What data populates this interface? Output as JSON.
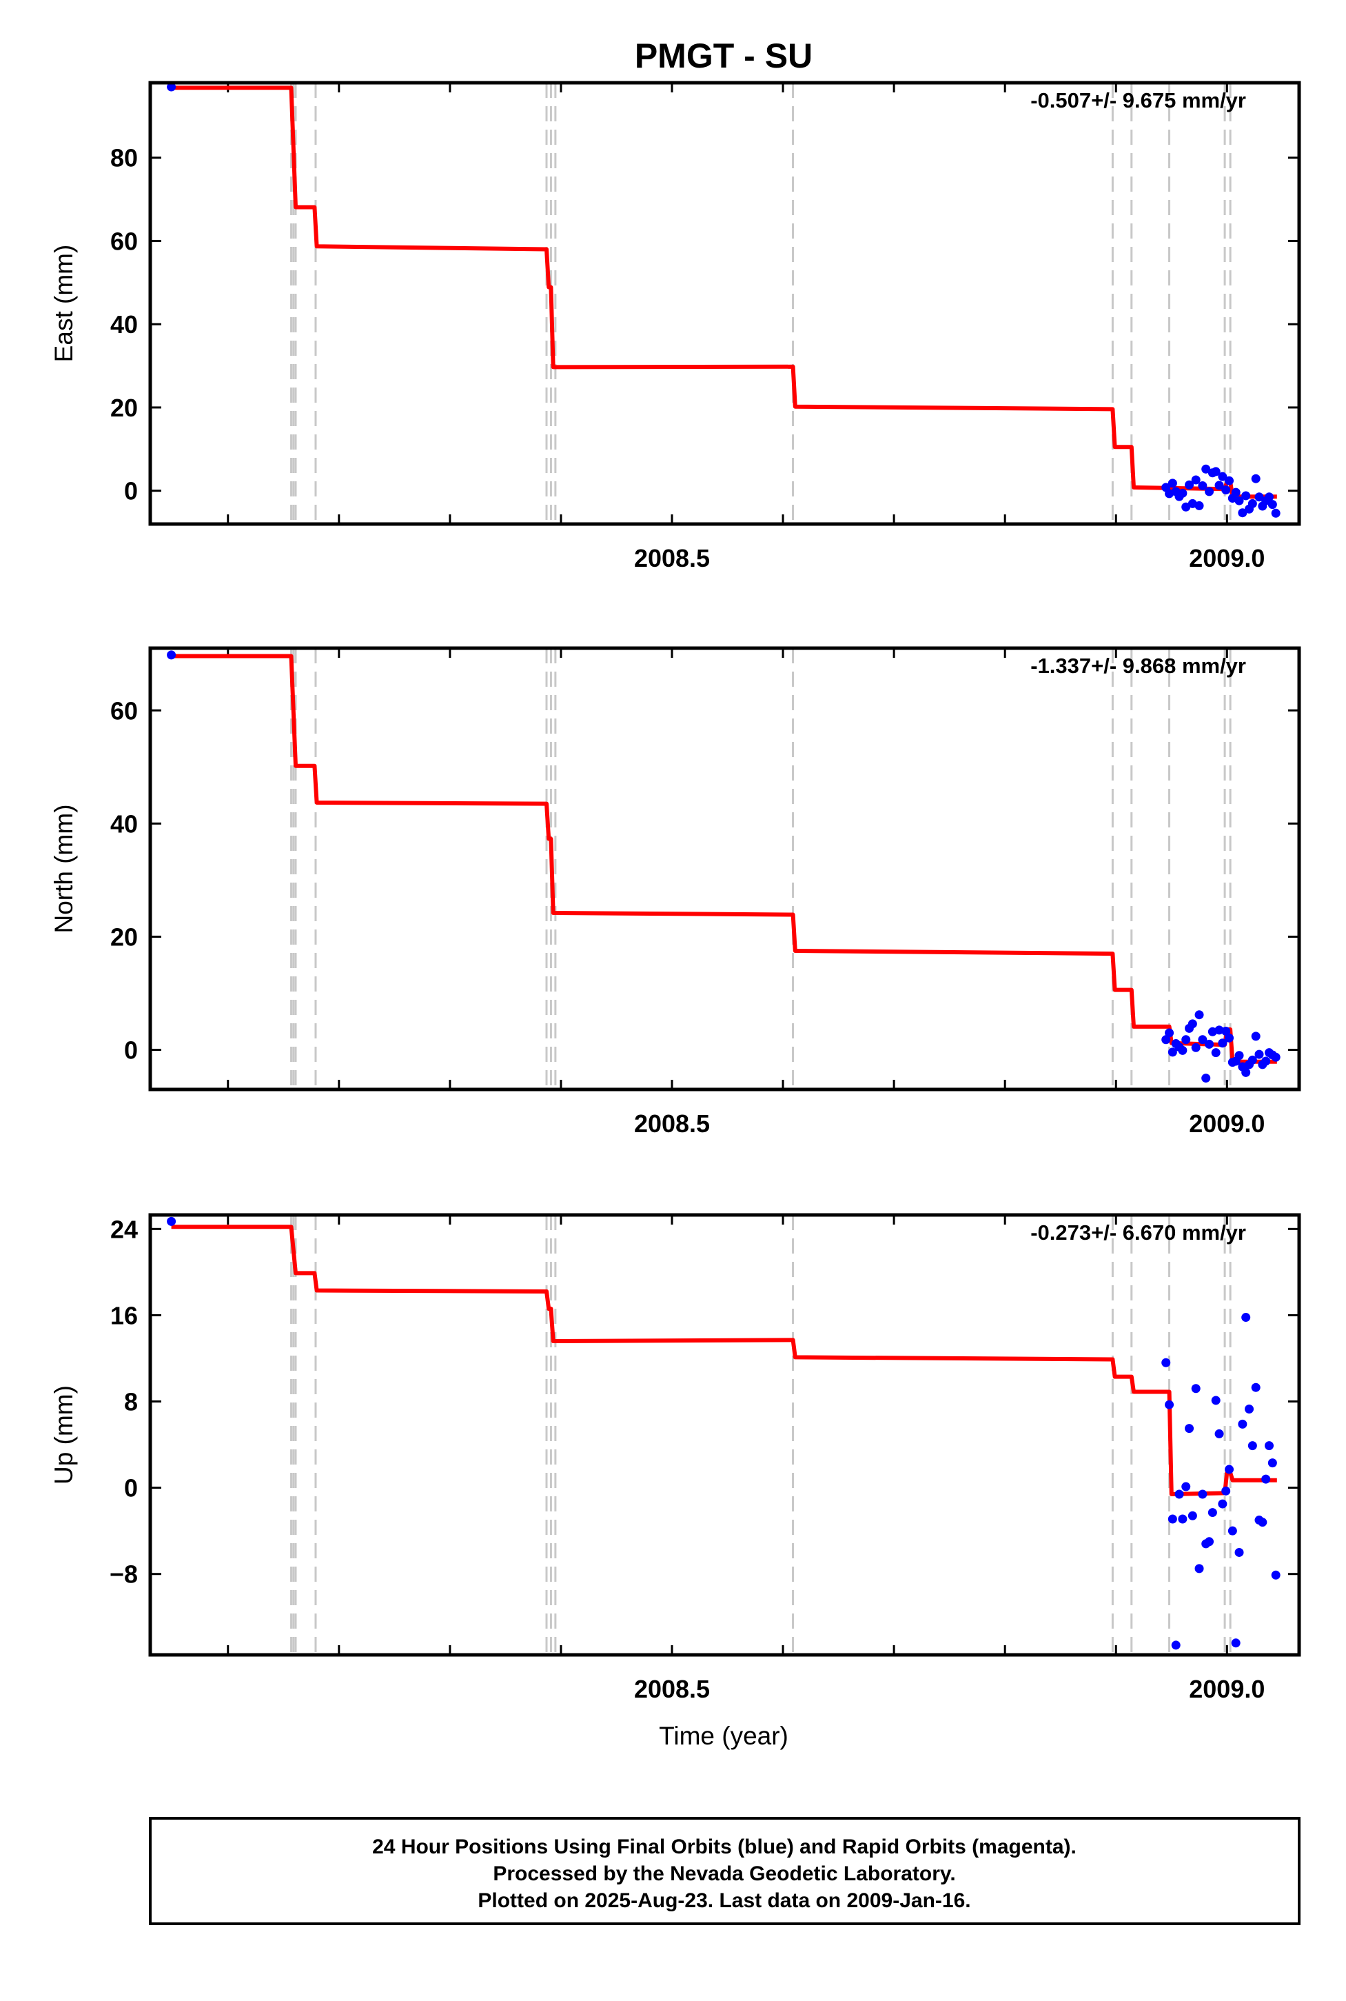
{
  "title": "PMGT - SU",
  "x_axis_label": "Time (year)",
  "footer_lines": [
    "24 Hour Positions Using Final Orbits (blue) and Rapid Orbits (magenta).",
    "Processed by the Nevada Geodetic Laboratory.",
    "Plotted on 2025-Aug-23. Last data on 2009-Jan-16."
  ],
  "colors": {
    "final_orbits": "#0000ff",
    "model": "#ff0000",
    "event_lines": "#c8c8c8",
    "frame": "#000000"
  },
  "chart_data": [
    {
      "type": "scatter",
      "component": "East",
      "ylabel": "East (mm)",
      "rate_text": "-0.507+/- 9.675 mm/yr",
      "xlim": [
        2008.03,
        2009.065
      ],
      "ylim": [
        -8,
        98
      ],
      "x_ticks": [
        2008.5,
        2009.0
      ],
      "x_tick_labels": [
        "2008.5",
        "2009.0"
      ],
      "y_ticks": [
        0,
        20,
        40,
        60,
        80
      ],
      "y_tick_labels": [
        "0",
        "20",
        "40",
        "60",
        "80"
      ],
      "event_lines": [
        2008.157,
        2008.159,
        2008.161,
        2008.179,
        2008.387,
        2008.391,
        2008.395,
        2008.609,
        2008.897,
        2008.914,
        2008.948,
        2008.998,
        2009.003
      ],
      "points": {
        "x": [
          2008.049,
          2008.945,
          2008.948,
          2008.951,
          2008.954,
          2008.957,
          2008.96,
          2008.963,
          2008.966,
          2008.969,
          2008.972,
          2008.975,
          2008.978,
          2008.981,
          2008.984,
          2008.987,
          2008.99,
          2008.993,
          2008.996,
          2008.999,
          2009.002,
          2009.005,
          2009.008,
          2009.011,
          2009.014,
          2009.017,
          2009.02,
          2009.023,
          2009.026,
          2009.029,
          2009.032,
          2009.035,
          2009.038,
          2009.041,
          2009.044
        ],
        "y": [
          97,
          0.8,
          -0.7,
          1.8,
          -0.2,
          -1.4,
          -0.6,
          -3.9,
          1.4,
          -3.1,
          2.6,
          -3.6,
          1.2,
          5.2,
          -0.2,
          4.3,
          4.6,
          1.3,
          3.4,
          0.2,
          2.4,
          -1.8,
          -0.4,
          -2.4,
          -5.3,
          -1.2,
          -4.4,
          -3.1,
          2.9,
          -1.5,
          -3.7,
          -2.4,
          -1.5,
          -3.3,
          -5.4
        ]
      },
      "model": {
        "x": [
          2008.049,
          2008.157,
          2008.161,
          2008.162,
          2008.178,
          2008.18,
          2008.387,
          2008.389,
          2008.391,
          2008.393,
          2008.395,
          2008.609,
          2008.611,
          2008.897,
          2008.899,
          2008.914,
          2008.916,
          2008.998,
          2009.0,
          2009.003,
          2009.005,
          2009.045
        ],
        "y": [
          96.8,
          96.8,
          68.1,
          68.1,
          68.1,
          58.7,
          58.0,
          48.9,
          48.9,
          29.7,
          29.7,
          29.8,
          20.2,
          19.6,
          10.5,
          10.5,
          0.8,
          0.4,
          2.1,
          2.1,
          -1.4,
          -1.4
        ]
      }
    },
    {
      "type": "scatter",
      "component": "North",
      "ylabel": "North (mm)",
      "rate_text": "-1.337+/- 9.868 mm/yr",
      "xlim": [
        2008.03,
        2009.065
      ],
      "ylim": [
        -7,
        71
      ],
      "x_ticks": [
        2008.5,
        2009.0
      ],
      "x_tick_labels": [
        "2008.5",
        "2009.0"
      ],
      "y_ticks": [
        0,
        20,
        40,
        60
      ],
      "y_tick_labels": [
        "0",
        "20",
        "40",
        "60"
      ],
      "event_lines": [
        2008.157,
        2008.159,
        2008.161,
        2008.179,
        2008.387,
        2008.391,
        2008.395,
        2008.609,
        2008.897,
        2008.914,
        2008.948,
        2008.998,
        2009.003
      ],
      "points": {
        "x": [
          2008.049,
          2008.945,
          2008.948,
          2008.951,
          2008.954,
          2008.957,
          2008.96,
          2008.963,
          2008.966,
          2008.969,
          2008.972,
          2008.975,
          2008.978,
          2008.981,
          2008.984,
          2008.987,
          2008.99,
          2008.993,
          2008.996,
          2008.999,
          2009.002,
          2009.005,
          2009.008,
          2009.011,
          2009.014,
          2009.017,
          2009.02,
          2009.023,
          2009.026,
          2009.029,
          2009.032,
          2009.035,
          2009.038,
          2009.041,
          2009.044
        ],
        "y": [
          69.8,
          1.8,
          3.0,
          -0.4,
          1.1,
          0.5,
          -0.1,
          1.8,
          3.8,
          4.6,
          0.4,
          6.2,
          1.8,
          -5.0,
          1.0,
          3.2,
          -0.5,
          3.5,
          1.2,
          3.3,
          2.1,
          -2.2,
          -2.0,
          -1.0,
          -3.0,
          -4.0,
          -2.6,
          -1.8,
          2.4,
          -0.8,
          -2.6,
          -2.0,
          -0.5,
          -0.9,
          -1.3
        ]
      },
      "model": {
        "x": [
          2008.049,
          2008.157,
          2008.161,
          2008.162,
          2008.178,
          2008.18,
          2008.387,
          2008.389,
          2008.391,
          2008.393,
          2008.395,
          2008.609,
          2008.611,
          2008.897,
          2008.899,
          2008.914,
          2008.916,
          2008.948,
          2008.95,
          2008.998,
          2009.0,
          2009.003,
          2009.005,
          2009.045
        ],
        "y": [
          69.6,
          69.6,
          50.2,
          50.2,
          50.2,
          43.7,
          43.5,
          37.3,
          37.3,
          24.2,
          24.2,
          23.9,
          17.5,
          17.0,
          10.6,
          10.6,
          4.1,
          4.1,
          1.2,
          0.9,
          3.6,
          3.6,
          -2.1,
          -2.1
        ]
      }
    },
    {
      "type": "scatter",
      "component": "Up",
      "ylabel": "Up (mm)",
      "rate_text": "-0.273+/- 6.670 mm/yr",
      "xlim": [
        2008.03,
        2009.065
      ],
      "ylim": [
        -15.5,
        25.3
      ],
      "x_ticks": [
        2008.5,
        2009.0
      ],
      "x_tick_labels": [
        "2008.5",
        "2009.0"
      ],
      "y_ticks": [
        -8,
        0,
        8,
        16,
        24
      ],
      "y_tick_labels": [
        "−8",
        "0",
        "8",
        "16",
        "24"
      ],
      "event_lines": [
        2008.157,
        2008.159,
        2008.161,
        2008.179,
        2008.387,
        2008.391,
        2008.395,
        2008.609,
        2008.897,
        2008.914,
        2008.948,
        2008.998,
        2009.003
      ],
      "points": {
        "x": [
          2008.049,
          2008.945,
          2008.948,
          2008.951,
          2008.954,
          2008.957,
          2008.96,
          2008.963,
          2008.966,
          2008.969,
          2008.972,
          2008.975,
          2008.978,
          2008.981,
          2008.984,
          2008.987,
          2008.99,
          2008.993,
          2008.996,
          2008.999,
          2009.002,
          2009.005,
          2009.008,
          2009.011,
          2009.014,
          2009.017,
          2009.02,
          2009.023,
          2009.026,
          2009.029,
          2009.032,
          2009.035,
          2009.038,
          2009.041,
          2009.044
        ],
        "y": [
          24.7,
          11.6,
          7.7,
          -2.9,
          -14.6,
          -0.6,
          -2.9,
          0.1,
          5.5,
          -2.6,
          9.2,
          -7.5,
          -0.6,
          -5.2,
          -5.0,
          -2.3,
          8.1,
          5.0,
          -1.5,
          -0.3,
          1.7,
          -4.0,
          -14.4,
          -6.0,
          5.9,
          15.8,
          7.3,
          3.9,
          9.3,
          -3.0,
          -3.2,
          0.8,
          3.9,
          2.3,
          -8.1
        ]
      },
      "model": {
        "x": [
          2008.049,
          2008.157,
          2008.161,
          2008.162,
          2008.178,
          2008.18,
          2008.387,
          2008.389,
          2008.391,
          2008.393,
          2008.395,
          2008.609,
          2008.611,
          2008.897,
          2008.899,
          2008.914,
          2008.916,
          2008.948,
          2008.95,
          2008.998,
          2009.0,
          2009.003,
          2009.005,
          2009.045
        ],
        "y": [
          24.2,
          24.2,
          19.9,
          19.9,
          19.9,
          18.3,
          18.2,
          16.6,
          16.6,
          13.6,
          13.6,
          13.7,
          12.1,
          11.9,
          10.3,
          10.3,
          8.9,
          8.9,
          -0.6,
          -0.5,
          1.4,
          1.4,
          0.7,
          0.7
        ]
      }
    }
  ]
}
